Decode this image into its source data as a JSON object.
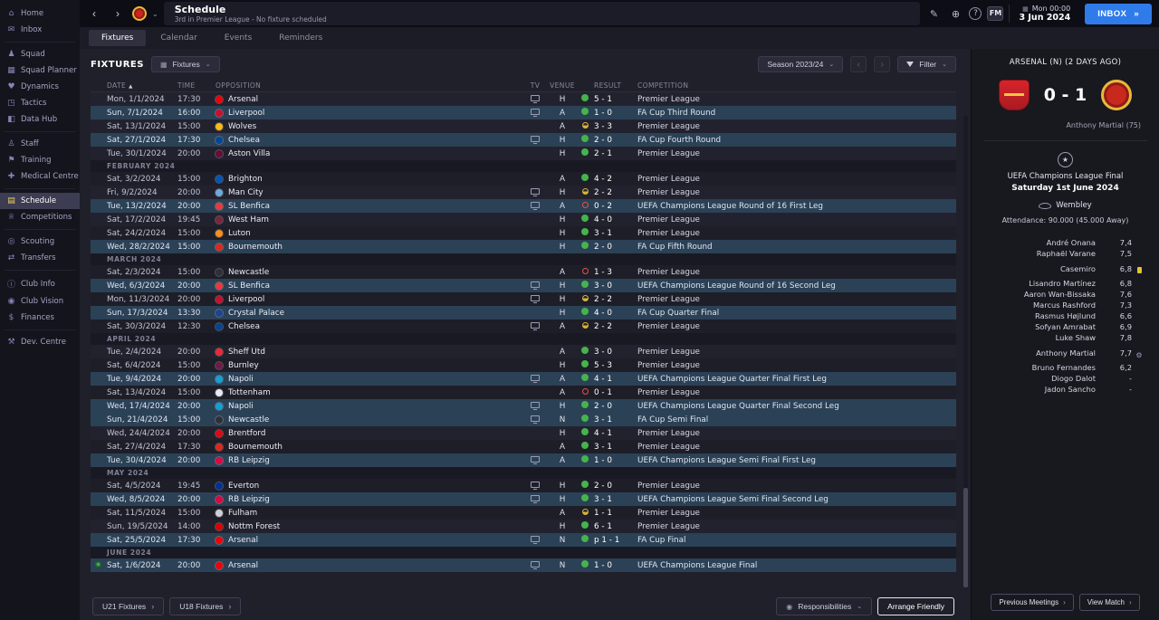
{
  "topbar": {
    "title": "Schedule",
    "subtitle": "3rd in Premier League - No fixture scheduled",
    "date_time": "Mon 00:00",
    "date": "3 Jun 2024",
    "inbox": "INBOX",
    "fm_logo": "FM"
  },
  "tabs": [
    {
      "label": "Fixtures",
      "active": true
    },
    {
      "label": "Calendar",
      "active": false
    },
    {
      "label": "Events",
      "active": false
    },
    {
      "label": "Reminders",
      "active": false
    }
  ],
  "sidebar": {
    "items": [
      {
        "label": "Home",
        "icon": "home"
      },
      {
        "label": "Inbox",
        "icon": "inbox"
      },
      {
        "divider": true
      },
      {
        "label": "Squad",
        "icon": "squad"
      },
      {
        "label": "Squad Planner",
        "icon": "planner"
      },
      {
        "label": "Dynamics",
        "icon": "dynamics"
      },
      {
        "label": "Tactics",
        "icon": "tactics"
      },
      {
        "label": "Data Hub",
        "icon": "datahub"
      },
      {
        "divider": true
      },
      {
        "label": "Staff",
        "icon": "staff"
      },
      {
        "label": "Training",
        "icon": "training"
      },
      {
        "label": "Medical Centre",
        "icon": "medical"
      },
      {
        "divider": true
      },
      {
        "label": "Schedule",
        "icon": "schedule",
        "active": true
      },
      {
        "label": "Competitions",
        "icon": "competitions"
      },
      {
        "divider": true
      },
      {
        "label": "Scouting",
        "icon": "scouting"
      },
      {
        "label": "Transfers",
        "icon": "transfers"
      },
      {
        "divider": true
      },
      {
        "label": "Club Info",
        "icon": "clubinfo"
      },
      {
        "label": "Club Vision",
        "icon": "vision"
      },
      {
        "label": "Finances",
        "icon": "finances"
      },
      {
        "divider": true
      },
      {
        "label": "Dev. Centre",
        "icon": "dev"
      }
    ]
  },
  "toolbar": {
    "section_label": "FIXTURES",
    "view_button": "Fixtures",
    "season_selector": "Season 2023/24",
    "filter_button": "Filter"
  },
  "table": {
    "columns": {
      "date": "DATE",
      "time": "TIME",
      "opposition": "OPPOSITION",
      "tv": "TV",
      "venue": "VENUE",
      "result": "RESULT",
      "competition": "COMPETITION"
    },
    "rows": [
      {
        "date": "Mon, 1/1/2024",
        "time": "17:30",
        "opposition": "Arsenal",
        "badge": "#EF0107",
        "tv": true,
        "venue": "H",
        "outcome": "W",
        "result": "5 - 1",
        "competition": "Premier League",
        "cup": false
      },
      {
        "date": "Sun, 7/1/2024",
        "time": "16:00",
        "opposition": "Liverpool",
        "badge": "#C8102E",
        "tv": true,
        "venue": "A",
        "outcome": "W",
        "result": "1 - 0",
        "competition": "FA Cup Third Round",
        "cup": true
      },
      {
        "date": "Sat, 13/1/2024",
        "time": "15:00",
        "opposition": "Wolves",
        "badge": "#FDB913",
        "tv": false,
        "venue": "A",
        "outcome": "D",
        "result": "3 - 3",
        "competition": "Premier League",
        "cup": false
      },
      {
        "date": "Sat, 27/1/2024",
        "time": "17:30",
        "opposition": "Chelsea",
        "badge": "#034694",
        "tv": true,
        "venue": "H",
        "outcome": "W",
        "result": "2 - 0",
        "competition": "FA Cup Fourth Round",
        "cup": true
      },
      {
        "date": "Tue, 30/1/2024",
        "time": "20:00",
        "opposition": "Aston Villa",
        "badge": "#670E36",
        "tv": false,
        "venue": "H",
        "outcome": "W",
        "result": "2 - 1",
        "competition": "Premier League",
        "cup": false
      },
      {
        "month": "FEBRUARY 2024"
      },
      {
        "date": "Sat, 3/2/2024",
        "time": "15:00",
        "opposition": "Brighton",
        "badge": "#0057B8",
        "tv": false,
        "venue": "A",
        "outcome": "W",
        "result": "4 - 2",
        "competition": "Premier League",
        "cup": false
      },
      {
        "date": "Fri, 9/2/2024",
        "time": "20:00",
        "opposition": "Man City",
        "badge": "#6CABDD",
        "tv": true,
        "venue": "H",
        "outcome": "D",
        "result": "2 - 2",
        "competition": "Premier League",
        "cup": false
      },
      {
        "date": "Tue, 13/2/2024",
        "time": "20:00",
        "opposition": "SL Benfica",
        "badge": "#E83A3A",
        "tv": true,
        "venue": "A",
        "outcome": "L",
        "result": "0 - 2",
        "competition": "UEFA Champions League Round of 16  First Leg",
        "cup": true
      },
      {
        "date": "Sat, 17/2/2024",
        "time": "19:45",
        "opposition": "West Ham",
        "badge": "#7A263A",
        "tv": false,
        "venue": "H",
        "outcome": "W",
        "result": "4 - 0",
        "competition": "Premier League",
        "cup": false
      },
      {
        "date": "Sat, 24/2/2024",
        "time": "15:00",
        "opposition": "Luton",
        "badge": "#F78F1E",
        "tv": false,
        "venue": "H",
        "outcome": "W",
        "result": "3 - 1",
        "competition": "Premier League",
        "cup": false
      },
      {
        "date": "Wed, 28/2/2024",
        "time": "15:00",
        "opposition": "Bournemouth",
        "badge": "#DA291C",
        "tv": false,
        "venue": "H",
        "outcome": "W",
        "result": "2 - 0",
        "competition": "FA Cup Fifth Round",
        "cup": true
      },
      {
        "month": "MARCH 2024"
      },
      {
        "date": "Sat, 2/3/2024",
        "time": "15:00",
        "opposition": "Newcastle",
        "badge": "#2F2F38",
        "tv": false,
        "venue": "A",
        "outcome": "L",
        "result": "1 - 3",
        "competition": "Premier League",
        "cup": false
      },
      {
        "date": "Wed, 6/3/2024",
        "time": "20:00",
        "opposition": "SL Benfica",
        "badge": "#E83A3A",
        "tv": true,
        "venue": "H",
        "outcome": "W",
        "result": "3 - 0",
        "competition": "UEFA Champions League Round of 16  Second Leg",
        "cup": true
      },
      {
        "date": "Mon, 11/3/2024",
        "time": "20:00",
        "opposition": "Liverpool",
        "badge": "#C8102E",
        "tv": true,
        "venue": "H",
        "outcome": "D",
        "result": "2 - 2",
        "competition": "Premier League",
        "cup": false
      },
      {
        "date": "Sun, 17/3/2024",
        "time": "13:30",
        "opposition": "Crystal Palace",
        "badge": "#1B458F",
        "tv": false,
        "venue": "H",
        "outcome": "W",
        "result": "4 - 0",
        "competition": "FA Cup Quarter Final",
        "cup": true
      },
      {
        "date": "Sat, 30/3/2024",
        "time": "12:30",
        "opposition": "Chelsea",
        "badge": "#034694",
        "tv": true,
        "venue": "A",
        "outcome": "D",
        "result": "2 - 2",
        "competition": "Premier League",
        "cup": false
      },
      {
        "month": "APRIL 2024"
      },
      {
        "date": "Tue, 2/4/2024",
        "time": "20:00",
        "opposition": "Sheff Utd",
        "badge": "#EE2737",
        "tv": false,
        "venue": "A",
        "outcome": "W",
        "result": "3 - 0",
        "competition": "Premier League",
        "cup": false
      },
      {
        "date": "Sat, 6/4/2024",
        "time": "15:00",
        "opposition": "Burnley",
        "badge": "#6C1D45",
        "tv": false,
        "venue": "H",
        "outcome": "W",
        "result": "5 - 3",
        "competition": "Premier League",
        "cup": false
      },
      {
        "date": "Tue, 9/4/2024",
        "time": "20:00",
        "opposition": "Napoli",
        "badge": "#12A0D7",
        "tv": true,
        "venue": "A",
        "outcome": "W",
        "result": "4 - 1",
        "competition": "UEFA Champions League Quarter Final First Leg",
        "cup": true
      },
      {
        "date": "Sat, 13/4/2024",
        "time": "15:00",
        "opposition": "Tottenham",
        "badge": "#E8E8F0",
        "tv": false,
        "venue": "A",
        "outcome": "L",
        "result": "0 - 1",
        "competition": "Premier League",
        "cup": false
      },
      {
        "date": "Wed, 17/4/2024",
        "time": "20:00",
        "opposition": "Napoli",
        "badge": "#12A0D7",
        "tv": true,
        "venue": "H",
        "outcome": "W",
        "result": "2 - 0",
        "competition": "UEFA Champions League Quarter Final Second Leg",
        "cup": true
      },
      {
        "date": "Sun, 21/4/2024",
        "time": "15:00",
        "opposition": "Newcastle",
        "badge": "#2F2F38",
        "tv": true,
        "venue": "N",
        "outcome": "W",
        "result": "3 - 1",
        "competition": "FA Cup Semi Final",
        "cup": true
      },
      {
        "date": "Wed, 24/4/2024",
        "time": "20:00",
        "opposition": "Brentford",
        "badge": "#E30613",
        "tv": false,
        "venue": "H",
        "outcome": "W",
        "result": "4 - 1",
        "competition": "Premier League",
        "cup": false
      },
      {
        "date": "Sat, 27/4/2024",
        "time": "17:30",
        "opposition": "Bournemouth",
        "badge": "#DA291C",
        "tv": false,
        "venue": "A",
        "outcome": "W",
        "result": "3 - 1",
        "competition": "Premier League",
        "cup": false
      },
      {
        "date": "Tue, 30/4/2024",
        "time": "20:00",
        "opposition": "RB Leipzig",
        "badge": "#DD0741",
        "tv": true,
        "venue": "A",
        "outcome": "W",
        "result": "1 - 0",
        "competition": "UEFA Champions League Semi Final First Leg",
        "cup": true
      },
      {
        "month": "MAY 2024"
      },
      {
        "date": "Sat, 4/5/2024",
        "time": "19:45",
        "opposition": "Everton",
        "badge": "#003399",
        "tv": true,
        "venue": "H",
        "outcome": "W",
        "result": "2 - 0",
        "competition": "Premier League",
        "cup": false
      },
      {
        "date": "Wed, 8/5/2024",
        "time": "20:00",
        "opposition": "RB Leipzig",
        "badge": "#DD0741",
        "tv": true,
        "venue": "H",
        "outcome": "W",
        "result": "3 - 1",
        "competition": "UEFA Champions League Semi Final Second Leg",
        "cup": true
      },
      {
        "date": "Sat, 11/5/2024",
        "time": "15:00",
        "opposition": "Fulham",
        "badge": "#CFCFD8",
        "tv": false,
        "venue": "A",
        "outcome": "D",
        "result": "1 - 1",
        "competition": "Premier League",
        "cup": false
      },
      {
        "date": "Sun, 19/5/2024",
        "time": "14:00",
        "opposition": "Nottm Forest",
        "badge": "#DD0000",
        "tv": false,
        "venue": "H",
        "outcome": "W",
        "result": "6 - 1",
        "competition": "Premier League",
        "cup": false
      },
      {
        "date": "Sat, 25/5/2024",
        "time": "17:30",
        "opposition": "Arsenal",
        "badge": "#EF0107",
        "tv": true,
        "venue": "N",
        "outcome": "W",
        "result": "p 1 - 1",
        "competition": "FA Cup Final",
        "cup": true
      },
      {
        "month": "JUNE 2024"
      },
      {
        "date": "Sat, 1/6/2024",
        "time": "20:00",
        "opposition": "Arsenal",
        "badge": "#EF0107",
        "tv": true,
        "venue": "N",
        "outcome": "W",
        "result": "1 - 0",
        "competition": "UEFA Champions League Final",
        "cup": true,
        "recent": true
      }
    ]
  },
  "footer": {
    "u21": "U21 Fixtures",
    "u18": "U18 Fixtures",
    "responsibilities": "Responsibilities",
    "arrange_friendly": "Arrange Friendly"
  },
  "match_panel": {
    "header": "ARSENAL (N) (2 DAYS AGO)",
    "home_team": "Arsenal",
    "away_team": "Man Utd",
    "score": "0 - 1",
    "scorer": "Anthony Martial (75)",
    "competition": "UEFA Champions League Final",
    "match_date": "Saturday 1st June 2024",
    "venue": "Wembley",
    "attendance": "Attendance: 90.000 (45.000 Away)",
    "ratings": [
      {
        "name": "André Onana",
        "rating": "7,4"
      },
      {
        "name": "Raphaël Varane",
        "rating": "7,5"
      },
      {
        "name": "Casemiro",
        "rating": "6,8",
        "icon": "yellow-card"
      },
      {
        "name": "Lisandro Martínez",
        "rating": "6,8"
      },
      {
        "name": "Aaron Wan-Bissaka",
        "rating": "7,6"
      },
      {
        "name": "Marcus Rashford",
        "rating": "7,3"
      },
      {
        "name": "Rasmus Højlund",
        "rating": "6,6"
      },
      {
        "name": "Sofyan Amrabat",
        "rating": "6,9"
      },
      {
        "name": "Luke Shaw",
        "rating": "7,8"
      },
      {
        "name": "Anthony Martial",
        "rating": "7,7",
        "icon": "gear"
      },
      {
        "name": "Bruno Fernandes",
        "rating": "6,2"
      },
      {
        "name": "Diogo Dalot",
        "rating": "-"
      },
      {
        "name": "Jadon Sancho",
        "rating": "-"
      }
    ],
    "previous_meetings": "Previous Meetings",
    "view_match": "View Match"
  }
}
